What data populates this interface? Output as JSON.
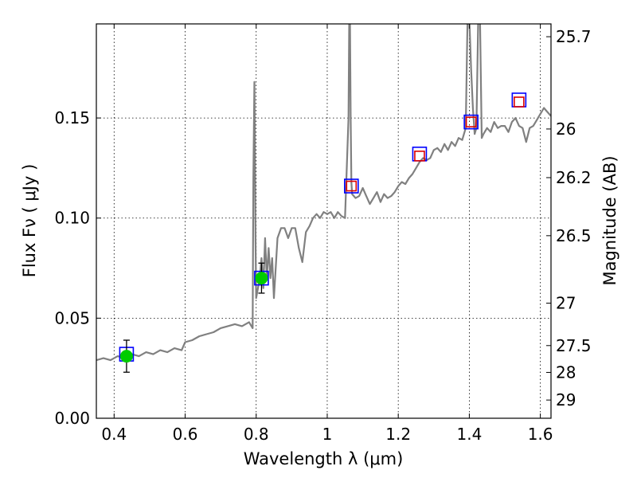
{
  "chart_data": {
    "type": "line",
    "xlabel": "Wavelength  λ (μm)",
    "ylabel": "Flux  Fν  ( μJy )",
    "ylabel_right": "Magnitude (AB)",
    "xlim": [
      0.35,
      1.63
    ],
    "ylim": [
      0.0,
      0.197
    ],
    "grid": true,
    "x_ticks": [
      0.4,
      0.6,
      0.8,
      1.0,
      1.2,
      1.4,
      1.6
    ],
    "x_tick_labels": [
      "0.4",
      "0.6",
      "0.8",
      "1",
      "1.2",
      "1.4",
      "1.6"
    ],
    "y_ticks": [
      0.0,
      0.05,
      0.1,
      0.15
    ],
    "y_tick_labels": [
      "0.00",
      "0.05",
      "0.10",
      "0.15"
    ],
    "right_ticks": [
      {
        "label": "25.7",
        "flux": 0.1906
      },
      {
        "label": "26",
        "flux": 0.1445
      },
      {
        "label": "26.2",
        "flux": 0.1202
      },
      {
        "label": "26.5",
        "flux": 0.0912
      },
      {
        "label": "27",
        "flux": 0.0575
      },
      {
        "label": "27.5",
        "flux": 0.0363
      },
      {
        "label": "28",
        "flux": 0.0229
      },
      {
        "label": "29",
        "flux": 0.0091
      }
    ],
    "series": [
      {
        "kind": "spectrum",
        "color": "#808080",
        "x": [
          0.35,
          0.37,
          0.39,
          0.41,
          0.43,
          0.45,
          0.47,
          0.49,
          0.51,
          0.53,
          0.55,
          0.57,
          0.59,
          0.6,
          0.62,
          0.64,
          0.66,
          0.68,
          0.7,
          0.72,
          0.74,
          0.76,
          0.78,
          0.79,
          0.792,
          0.795,
          0.798,
          0.8,
          0.805,
          0.81,
          0.815,
          0.82,
          0.825,
          0.83,
          0.835,
          0.84,
          0.845,
          0.85,
          0.86,
          0.87,
          0.88,
          0.89,
          0.9,
          0.91,
          0.92,
          0.93,
          0.94,
          0.95,
          0.96,
          0.97,
          0.98,
          0.99,
          1.0,
          1.01,
          1.02,
          1.03,
          1.04,
          1.05,
          1.06,
          1.062,
          1.064,
          1.066,
          1.068,
          1.07,
          1.08,
          1.09,
          1.1,
          1.11,
          1.12,
          1.13,
          1.14,
          1.15,
          1.16,
          1.17,
          1.18,
          1.19,
          1.2,
          1.21,
          1.22,
          1.23,
          1.24,
          1.25,
          1.26,
          1.27,
          1.28,
          1.29,
          1.3,
          1.31,
          1.32,
          1.33,
          1.34,
          1.35,
          1.36,
          1.37,
          1.38,
          1.39,
          1.395,
          1.4,
          1.405,
          1.41,
          1.415,
          1.42,
          1.425,
          1.43,
          1.435,
          1.44,
          1.45,
          1.46,
          1.47,
          1.48,
          1.49,
          1.5,
          1.51,
          1.52,
          1.53,
          1.54,
          1.55,
          1.56,
          1.57,
          1.58,
          1.59,
          1.6,
          1.61,
          1.62,
          1.63
        ],
        "y": [
          0.029,
          0.03,
          0.029,
          0.031,
          0.03,
          0.032,
          0.031,
          0.033,
          0.032,
          0.034,
          0.033,
          0.035,
          0.034,
          0.038,
          0.039,
          0.041,
          0.042,
          0.043,
          0.045,
          0.046,
          0.047,
          0.046,
          0.048,
          0.045,
          0.12,
          0.168,
          0.09,
          0.06,
          0.065,
          0.07,
          0.08,
          0.065,
          0.09,
          0.07,
          0.085,
          0.07,
          0.08,
          0.06,
          0.09,
          0.095,
          0.095,
          0.09,
          0.095,
          0.095,
          0.085,
          0.078,
          0.093,
          0.096,
          0.1,
          0.102,
          0.1,
          0.103,
          0.102,
          0.103,
          0.1,
          0.103,
          0.101,
          0.1,
          0.15,
          0.2,
          0.2,
          0.15,
          0.118,
          0.112,
          0.11,
          0.111,
          0.115,
          0.111,
          0.107,
          0.11,
          0.113,
          0.108,
          0.112,
          0.11,
          0.111,
          0.113,
          0.116,
          0.118,
          0.117,
          0.12,
          0.122,
          0.125,
          0.128,
          0.13,
          0.129,
          0.13,
          0.134,
          0.135,
          0.133,
          0.137,
          0.134,
          0.138,
          0.136,
          0.14,
          0.139,
          0.145,
          0.2,
          0.2,
          0.175,
          0.155,
          0.142,
          0.145,
          0.2,
          0.2,
          0.14,
          0.142,
          0.145,
          0.143,
          0.148,
          0.145,
          0.146,
          0.146,
          0.143,
          0.148,
          0.15,
          0.146,
          0.145,
          0.138,
          0.145,
          0.146,
          0.149,
          0.152,
          0.155,
          0.153,
          0.151
        ]
      },
      {
        "kind": "model_photometry",
        "marker": "open-square",
        "color": "#0000ff",
        "x": [
          0.435,
          0.815,
          1.068,
          1.26,
          1.405,
          1.54
        ],
        "y": [
          0.032,
          0.07,
          0.116,
          0.132,
          0.148,
          0.159
        ]
      },
      {
        "kind": "photometry_hst",
        "marker": "open-square",
        "color": "#dd0000",
        "x": [
          1.068,
          1.26,
          1.405,
          1.54
        ],
        "y": [
          0.116,
          0.131,
          0.148,
          0.158
        ]
      },
      {
        "kind": "photometry_ground",
        "marker": "filled-circle",
        "color": "#00cc00",
        "x": [
          0.435,
          0.815
        ],
        "y": [
          0.031,
          0.07
        ],
        "yerr": [
          0.008,
          0.0075
        ]
      }
    ]
  }
}
